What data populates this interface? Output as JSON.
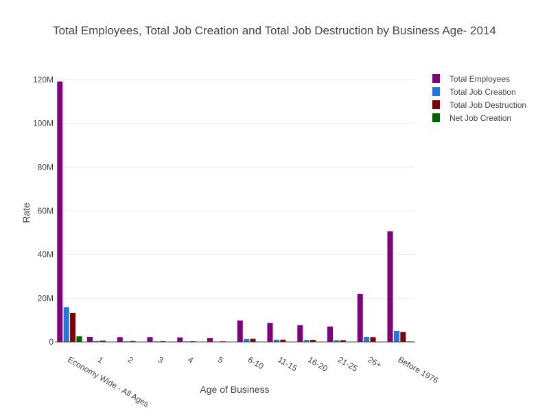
{
  "chart_data": {
    "type": "bar",
    "title": "Total Employees, Total Job Creation and Total Job Destruction by Business Age- 2014",
    "xlabel": "Age of Business",
    "ylabel": "Rate",
    "ylim": [
      0,
      125000000
    ],
    "yticks": [
      0,
      20000000,
      40000000,
      60000000,
      80000000,
      100000000,
      120000000
    ],
    "ytick_labels": [
      "0",
      "20M",
      "40M",
      "60M",
      "80M",
      "100M",
      "120M"
    ],
    "categories": [
      "Economy Wide - All Ages",
      "1",
      "2",
      "3",
      "4",
      "5",
      "6-10",
      "11-15",
      "16-20",
      "21-25",
      "26+",
      "Before 1976"
    ],
    "grid": true,
    "legend_position": "top-right",
    "series": [
      {
        "name": "Total Employees",
        "color": "#800080",
        "values": [
          119200000,
          2300000,
          2200000,
          2200000,
          2100000,
          1900000,
          9900000,
          8800000,
          7800000,
          7100000,
          22100000,
          50700000
        ]
      },
      {
        "name": "Total Job Creation",
        "color": "#1f77e0",
        "values": [
          16000000,
          500000,
          350000,
          320000,
          300000,
          250000,
          1400000,
          1100000,
          950000,
          850000,
          2300000,
          5100000
        ]
      },
      {
        "name": "Total Job Destruction",
        "color": "#800000",
        "values": [
          13300000,
          700000,
          500000,
          450000,
          400000,
          350000,
          1500000,
          1100000,
          1000000,
          900000,
          2200000,
          4600000
        ]
      },
      {
        "name": "Net Job Creation",
        "color": "#006400",
        "values": [
          2700000,
          100000,
          50000,
          40000,
          30000,
          20000,
          100000,
          50000,
          50000,
          50000,
          100000,
          300000
        ]
      }
    ]
  }
}
